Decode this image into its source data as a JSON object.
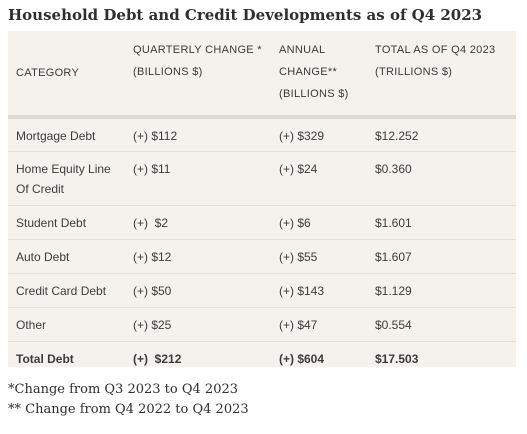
{
  "title": "Household Debt and Credit Developments as of Q4 2023",
  "table": {
    "headers": {
      "category": "CATEGORY",
      "quarterly_change": "QUARTERLY CHANGE *",
      "quarterly_change_unit": "(BILLIONS $)",
      "annual_change": "ANNUAL",
      "annual_change_2": "CHANGE**",
      "annual_change_unit": "(BILLIONS $)",
      "total": "TOTAL AS OF Q4 2023",
      "total_unit": "(TRILLIONS $)"
    },
    "rows": [
      {
        "category": "Mortgage Debt",
        "quarterly": "(+) $112",
        "annual": "(+) $329",
        "total": "$12.252"
      },
      {
        "category": "Home Equity Line Of Credit",
        "category_line1": "Home Equity Line",
        "category_line2": "Of Credit",
        "quarterly": "(+) $11",
        "annual": "(+) $24",
        "total": "$0.360"
      },
      {
        "category": "Student Debt",
        "quarterly": "(+)  $2",
        "annual": "(+) $6",
        "total": "$1.601"
      },
      {
        "category": "Auto Debt",
        "quarterly": "(+) $12",
        "annual": "(+) $55",
        "total": "$1.607"
      },
      {
        "category": "Credit Card Debt",
        "quarterly": "(+) $50",
        "annual": "(+) $143",
        "total": "$1.129"
      },
      {
        "category": "Other",
        "quarterly": "(+) $25",
        "annual": "(+) $47",
        "total": "$0.554"
      }
    ],
    "total_row": {
      "category": "Total Debt",
      "quarterly": "(+)  $212",
      "annual": "(+) $604",
      "total": "$17.503"
    }
  },
  "footnotes": {
    "note1": "*Change from Q3 2023 to Q4 2023",
    "note2": "** Change from Q4 2022 to Q4 2023"
  }
}
